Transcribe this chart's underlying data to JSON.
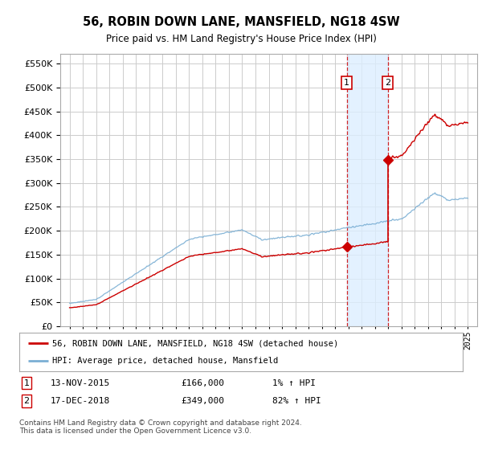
{
  "title": "56, ROBIN DOWN LANE, MANSFIELD, NG18 4SW",
  "subtitle": "Price paid vs. HM Land Registry's House Price Index (HPI)",
  "ylim": [
    0,
    570000
  ],
  "yticks": [
    0,
    50000,
    100000,
    150000,
    200000,
    250000,
    300000,
    350000,
    400000,
    450000,
    500000,
    550000
  ],
  "transaction1_date": 2015.87,
  "transaction1_price": 166000,
  "transaction2_date": 2018.96,
  "transaction2_price": 349000,
  "legend_line1": "56, ROBIN DOWN LANE, MANSFIELD, NG18 4SW (detached house)",
  "legend_line2": "HPI: Average price, detached house, Mansfield",
  "footer": "Contains HM Land Registry data © Crown copyright and database right 2024.\nThis data is licensed under the Open Government Licence v3.0.",
  "property_color": "#cc0000",
  "hpi_color": "#7bafd4",
  "background_color": "#ffffff",
  "grid_color": "#cccccc",
  "shaded_region_color": "#ddeeff",
  "sale1_date_str": "13-NOV-2015",
  "sale1_price_str": "£166,000",
  "sale1_hpi_str": "1% ↑ HPI",
  "sale2_date_str": "17-DEC-2018",
  "sale2_price_str": "£349,000",
  "sale2_hpi_str": "82% ↑ HPI"
}
